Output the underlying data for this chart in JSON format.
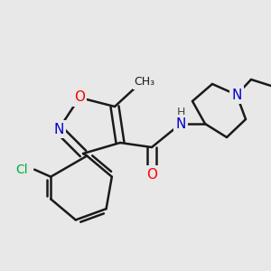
{
  "background_color": "#e8e8e8",
  "bond_color": "#1a1a1a",
  "bond_width": 1.8,
  "atom_colors": {
    "O": "#ff0000",
    "N": "#0000cc",
    "Cl": "#00aa44",
    "C": "#1a1a1a",
    "H": "#444444"
  },
  "font_size": 10,
  "figsize": [
    3.0,
    3.0
  ],
  "dpi": 100
}
